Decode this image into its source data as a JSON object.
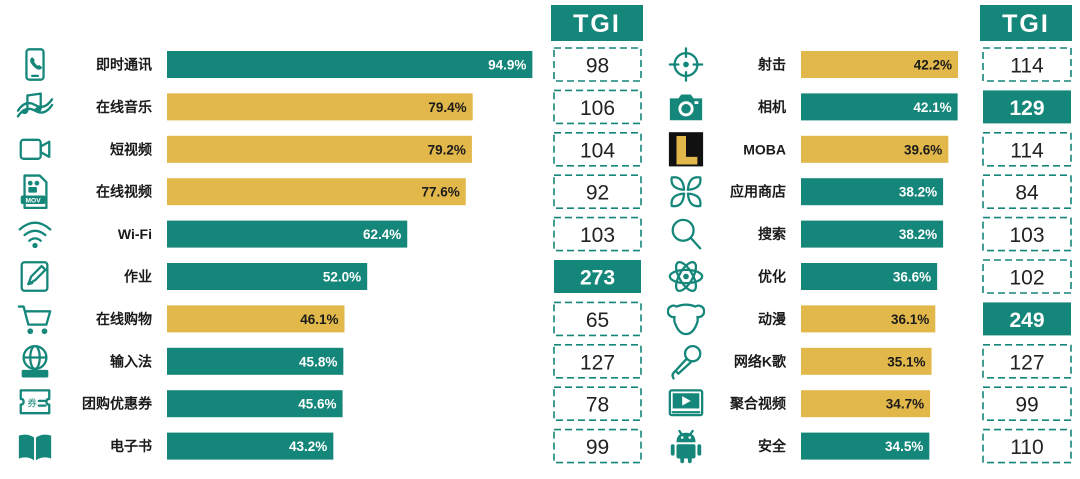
{
  "colors": {
    "teal": "#14867a",
    "gold": "#e2b84a",
    "dark": "#1a1a1a"
  },
  "chart_data": [
    {
      "type": "bar",
      "orientation": "horizontal",
      "categories": [
        "即时通讯",
        "在线音乐",
        "短视频",
        "在线视频",
        "Wi-Fi",
        "作业",
        "在线购物",
        "输入法",
        "团购优惠券",
        "电子书"
      ],
      "values": [
        94.9,
        79.4,
        79.2,
        77.6,
        62.4,
        52.0,
        46.1,
        45.8,
        45.6,
        43.2
      ],
      "value_labels": [
        "94.9%",
        "79.4%",
        "79.2%",
        "77.6%",
        "62.4%",
        "52.0%",
        "46.1%",
        "45.8%",
        "45.6%",
        "43.2%"
      ],
      "bar_colors": [
        "teal",
        "gold",
        "gold",
        "gold",
        "teal",
        "teal",
        "gold",
        "teal",
        "teal",
        "teal"
      ],
      "icons": [
        "phone-icon",
        "music-icon",
        "video-camera-icon",
        "video-file-icon",
        "wifi-icon",
        "pencil-icon",
        "cart-icon",
        "globe-keyboard-icon",
        "coupon-icon",
        "book-icon"
      ],
      "tgi_header": "TGI",
      "tgi": [
        98,
        106,
        104,
        92,
        103,
        273,
        65,
        127,
        78,
        99
      ],
      "tgi_highlight": [
        false,
        false,
        false,
        false,
        false,
        true,
        false,
        false,
        false,
        false
      ],
      "xlim": [
        0,
        100
      ]
    },
    {
      "type": "bar",
      "orientation": "horizontal",
      "categories": [
        "射击",
        "相机",
        "MOBA",
        "应用商店",
        "搜索",
        "优化",
        "动漫",
        "网络K歌",
        "聚合视频",
        "安全"
      ],
      "values": [
        42.2,
        42.1,
        39.6,
        38.2,
        38.2,
        36.6,
        36.1,
        35.1,
        34.7,
        34.5
      ],
      "value_labels": [
        "42.2%",
        "42.1%",
        "39.6%",
        "38.2%",
        "38.2%",
        "36.6%",
        "36.1%",
        "35.1%",
        "34.7%",
        "34.5%"
      ],
      "bar_colors": [
        "gold",
        "teal",
        "gold",
        "teal",
        "teal",
        "teal",
        "gold",
        "gold",
        "gold",
        "teal"
      ],
      "icons": [
        "crosshair-icon",
        "camera-icon",
        "moba-logo-icon",
        "app-store-icon",
        "search-icon",
        "atom-icon",
        "bear-icon",
        "microphone-icon",
        "video-player-icon",
        "android-icon"
      ],
      "tgi_header": "TGI",
      "tgi": [
        114,
        129,
        114,
        84,
        103,
        102,
        249,
        127,
        99,
        110
      ],
      "tgi_highlight": [
        false,
        true,
        false,
        false,
        false,
        false,
        true,
        false,
        false,
        false
      ],
      "xlim": [
        0,
        100
      ]
    }
  ]
}
